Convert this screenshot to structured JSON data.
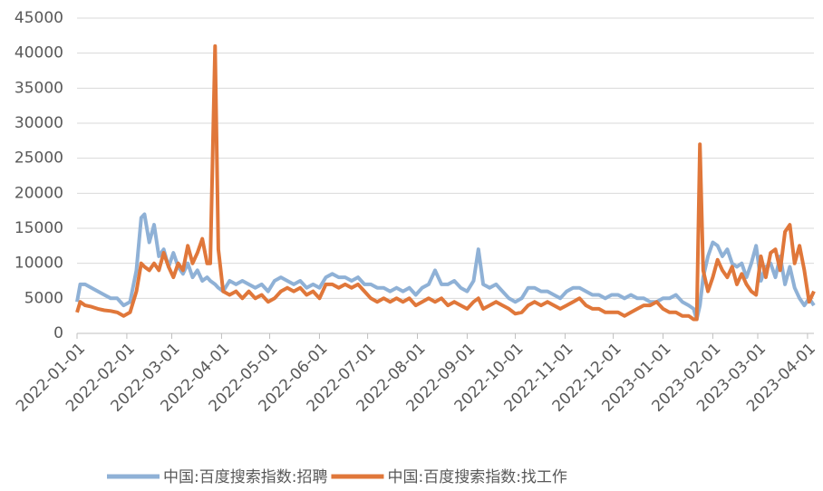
{
  "chart_data": {
    "type": "line",
    "x": [
      "2022-01-01",
      "2022-01-03",
      "2022-01-06",
      "2022-01-10",
      "2022-01-14",
      "2022-01-18",
      "2022-01-22",
      "2022-01-26",
      "2022-01-30",
      "2022-02-03",
      "2022-02-07",
      "2022-02-10",
      "2022-02-12",
      "2022-02-15",
      "2022-02-18",
      "2022-02-21",
      "2022-02-24",
      "2022-02-27",
      "2022-03-02",
      "2022-03-05",
      "2022-03-08",
      "2022-03-11",
      "2022-03-14",
      "2022-03-17",
      "2022-03-20",
      "2022-03-23",
      "2022-03-25",
      "2022-03-28",
      "2022-03-30",
      "2022-04-02",
      "2022-04-06",
      "2022-04-10",
      "2022-04-14",
      "2022-04-18",
      "2022-04-22",
      "2022-04-26",
      "2022-04-30",
      "2022-05-04",
      "2022-05-08",
      "2022-05-12",
      "2022-05-16",
      "2022-05-20",
      "2022-05-24",
      "2022-05-28",
      "2022-06-01",
      "2022-06-05",
      "2022-06-09",
      "2022-06-13",
      "2022-06-17",
      "2022-06-21",
      "2022-06-25",
      "2022-06-29",
      "2022-07-03",
      "2022-07-07",
      "2022-07-11",
      "2022-07-15",
      "2022-07-19",
      "2022-07-23",
      "2022-07-27",
      "2022-07-31",
      "2022-08-04",
      "2022-08-08",
      "2022-08-12",
      "2022-08-16",
      "2022-08-20",
      "2022-08-24",
      "2022-08-28",
      "2022-09-01",
      "2022-09-05",
      "2022-09-08",
      "2022-09-11",
      "2022-09-15",
      "2022-09-19",
      "2022-09-23",
      "2022-09-27",
      "2022-10-01",
      "2022-10-05",
      "2022-10-09",
      "2022-10-13",
      "2022-10-17",
      "2022-10-21",
      "2022-10-25",
      "2022-10-29",
      "2022-11-02",
      "2022-11-06",
      "2022-11-10",
      "2022-11-14",
      "2022-11-18",
      "2022-11-22",
      "2022-11-26",
      "2022-11-30",
      "2022-12-04",
      "2022-12-08",
      "2022-12-12",
      "2022-12-16",
      "2022-12-20",
      "2022-12-24",
      "2022-12-28",
      "2023-01-01",
      "2023-01-05",
      "2023-01-09",
      "2023-01-13",
      "2023-01-17",
      "2023-01-20",
      "2023-01-22",
      "2023-01-24",
      "2023-01-26",
      "2023-01-29",
      "2023-02-01",
      "2023-02-04",
      "2023-02-07",
      "2023-02-10",
      "2023-02-13",
      "2023-02-16",
      "2023-02-19",
      "2023-02-22",
      "2023-02-25",
      "2023-02-28",
      "2023-03-03",
      "2023-03-06",
      "2023-03-09",
      "2023-03-12",
      "2023-03-15",
      "2023-03-18",
      "2023-03-21",
      "2023-03-24",
      "2023-03-27",
      "2023-03-30",
      "2023-04-02",
      "2023-04-05"
    ],
    "series": [
      {
        "name": "中国:百度搜索指数:招聘",
        "color": "#8fb1d6",
        "values": [
          4500,
          7000,
          7000,
          6500,
          6000,
          5500,
          5000,
          5000,
          4000,
          4500,
          9000,
          16500,
          17000,
          13000,
          15500,
          11000,
          12000,
          9500,
          11500,
          9500,
          8500,
          10000,
          8000,
          9000,
          7500,
          8000,
          7500,
          7000,
          6500,
          6000,
          7500,
          7000,
          7500,
          7000,
          6500,
          7000,
          6000,
          7500,
          8000,
          7500,
          7000,
          7500,
          6500,
          7000,
          6500,
          8000,
          8500,
          8000,
          8000,
          7500,
          8000,
          7000,
          7000,
          6500,
          6500,
          6000,
          6500,
          6000,
          6500,
          5500,
          6500,
          7000,
          9000,
          7000,
          7000,
          7500,
          6500,
          6000,
          7500,
          12000,
          7000,
          6500,
          7000,
          6000,
          5000,
          4500,
          5000,
          6500,
          6500,
          6000,
          6000,
          5500,
          5000,
          6000,
          6500,
          6500,
          6000,
          5500,
          5500,
          5000,
          5500,
          5500,
          5000,
          5500,
          5000,
          5000,
          4500,
          4500,
          5000,
          5000,
          5500,
          4500,
          4000,
          3500,
          2000,
          4000,
          8000,
          11000,
          13000,
          12500,
          11000,
          12000,
          10000,
          9500,
          10000,
          8000,
          10000,
          12500,
          7500,
          9500,
          10000,
          8000,
          11000,
          7000,
          9500,
          6500,
          5000,
          4000,
          5000,
          4000
        ]
      },
      {
        "name": "中国:百度搜索指数:找工作",
        "color": "#e0773a",
        "values": [
          3000,
          4500,
          4000,
          3800,
          3500,
          3300,
          3200,
          3000,
          2500,
          3000,
          6000,
          10000,
          9500,
          9000,
          10000,
          9000,
          11500,
          9500,
          8000,
          10000,
          9000,
          12500,
          10000,
          11500,
          13500,
          10000,
          10000,
          41000,
          12000,
          6000,
          5500,
          6000,
          5000,
          6000,
          5000,
          5500,
          4500,
          5000,
          6000,
          6500,
          6000,
          6500,
          5500,
          6000,
          5000,
          7000,
          7000,
          6500,
          7000,
          6500,
          7000,
          6000,
          5000,
          4500,
          5000,
          4500,
          5000,
          4500,
          5000,
          4000,
          4500,
          5000,
          4500,
          5000,
          4000,
          4500,
          4000,
          3500,
          4500,
          5000,
          3500,
          4000,
          4500,
          4000,
          3500,
          2800,
          3000,
          4000,
          4500,
          4000,
          4500,
          4000,
          3500,
          4000,
          4500,
          5000,
          4000,
          3500,
          3500,
          3000,
          3000,
          3000,
          2500,
          3000,
          3500,
          4000,
          4000,
          4500,
          3500,
          3000,
          3000,
          2500,
          2500,
          2000,
          2000,
          27000,
          9000,
          6000,
          8000,
          10500,
          9000,
          8000,
          9500,
          7000,
          8500,
          7000,
          6000,
          5500,
          11000,
          8000,
          11500,
          12000,
          9000,
          14500,
          15500,
          10000,
          12500,
          9000,
          4500,
          6000
        ]
      }
    ],
    "xlim": [
      "2022-01-01",
      "2023-04-05"
    ],
    "xticks": [
      "2022-01-01",
      "2022-02-01",
      "2022-03-01",
      "2022-04-01",
      "2022-05-01",
      "2022-06-01",
      "2022-07-01",
      "2022-08-01",
      "2022-09-01",
      "2022-10-01",
      "2022-11-01",
      "2022-12-01",
      "2023-01-01",
      "2023-02-01",
      "2023-03-01",
      "2023-04-01"
    ],
    "ylim": [
      0,
      45000
    ],
    "yticks": [
      0,
      5000,
      10000,
      15000,
      20000,
      25000,
      30000,
      35000,
      40000,
      45000
    ],
    "grid": true
  }
}
